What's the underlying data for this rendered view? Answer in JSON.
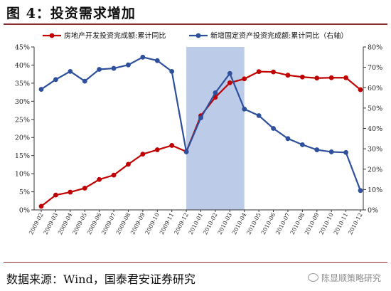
{
  "figure": {
    "title": "图 4：投资需求增加",
    "source": "数据来源：Wind，国泰君安证券研究",
    "watermark": "陈显顺策略研究"
  },
  "chart_data": {
    "type": "line",
    "categories": [
      "2009-02",
      "2009-03",
      "2009-04",
      "2009-05",
      "2009-06",
      "2009-07",
      "2009-08",
      "2009-09",
      "2009-10",
      "2009-11",
      "2009-12",
      "2010-01",
      "2010-02",
      "2010-03",
      "2010-04",
      "2010-05",
      "2010-06",
      "2010-07",
      "2010-08",
      "2010-09",
      "2010-10",
      "2010-11",
      "2010-12"
    ],
    "series": [
      {
        "name": "房地产开发投资完成额:累计同比",
        "axis": "left",
        "color": "#c00000",
        "values": [
          1.0,
          4.1,
          4.9,
          6.0,
          8.4,
          9.6,
          12.6,
          15.4,
          16.6,
          17.8,
          16.1,
          26.0,
          31.1,
          35.1,
          36.2,
          38.2,
          38.1,
          37.2,
          36.7,
          36.4,
          36.5,
          36.5,
          33.2
        ]
      },
      {
        "name": "新增固定资产投资完成额:累计同比（右轴）",
        "axis": "right",
        "color": "#2e4f9c",
        "values": [
          59.2,
          64.0,
          68.0,
          63.2,
          69.0,
          69.5,
          71.2,
          75.0,
          73.3,
          68.0,
          28.5,
          45.2,
          57.5,
          67.0,
          49.5,
          46.3,
          40.0,
          35.0,
          32.0,
          29.5,
          28.5,
          28.2,
          9.5
        ]
      }
    ],
    "y_left": {
      "min": 0,
      "max": 45,
      "step": 5,
      "suffix": "%"
    },
    "y_right": {
      "min": 0,
      "max": 80,
      "step": 10,
      "suffix": "%"
    },
    "shaded_region": {
      "from": "2009-12",
      "to": "2010-04",
      "color": "#b4c5e6"
    },
    "legend": "top",
    "grid": false
  }
}
